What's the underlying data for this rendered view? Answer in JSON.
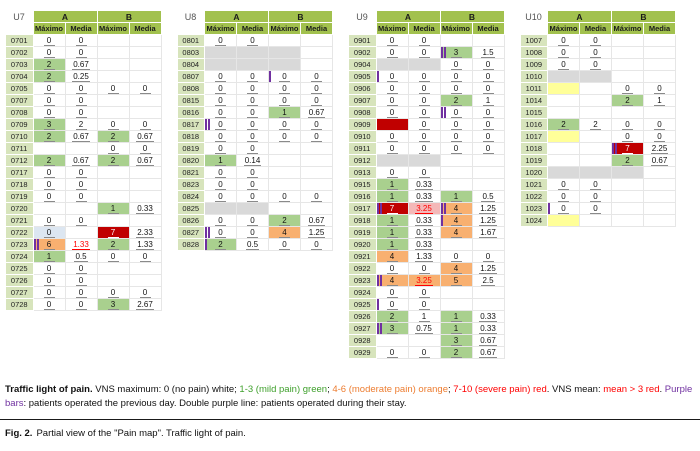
{
  "header": {
    "group_a": "A",
    "group_b": "B",
    "col_max": "Máximo",
    "col_mean": "Media"
  },
  "colors": {
    "header_green": "#a2c14e",
    "label_green": "#d7e4bc",
    "mild_green": "#a9d08e",
    "moderate_orange": "#f8b070",
    "severe_red": "#c00000",
    "yellow": "#ffff99",
    "gray": "#d9d9d9",
    "blue": "#dce6f1",
    "pink": "#f4b8b8",
    "purple": "#7030a0",
    "red_text": "#ff0000"
  },
  "units": [
    {
      "name": "U7",
      "rows": [
        [
          "0701",
          "0",
          "0",
          "",
          ""
        ],
        [
          "0702",
          "0",
          "0",
          "",
          ""
        ],
        [
          "0703",
          "2|g",
          "0.67",
          "",
          ""
        ],
        [
          "0704",
          "2|g",
          "0.25",
          "",
          ""
        ],
        [
          "0705",
          "0",
          "0",
          "0",
          "0"
        ],
        [
          "0707",
          "0",
          "0",
          "",
          ""
        ],
        [
          "0708",
          "0",
          "0",
          "",
          ""
        ],
        [
          "0709",
          "3|g",
          "2",
          "0",
          "0"
        ],
        [
          "0710",
          "2|g",
          "0.67",
          "2|g",
          "0.67"
        ],
        [
          "0711",
          "",
          "",
          "0",
          "0"
        ],
        [
          "0712",
          "2|g",
          "0.67",
          "2|g",
          "0.67"
        ],
        [
          "0717",
          "0",
          "0",
          "",
          ""
        ],
        [
          "0718",
          "0",
          "0",
          "",
          ""
        ],
        [
          "0719",
          "0",
          "0",
          "",
          ""
        ],
        [
          "0720",
          "",
          "",
          "1|g",
          "0.33"
        ],
        [
          "0721",
          "0",
          "0",
          "",
          ""
        ],
        [
          "0722",
          "0|b",
          "",
          "7|r|w",
          "2.33"
        ],
        [
          "0723",
          "6|o||d",
          "1.33||r",
          "2|g",
          "1.33"
        ],
        [
          "0724",
          "1|g",
          "0.5",
          "0",
          "0"
        ],
        [
          "0725",
          "0",
          "0",
          "",
          ""
        ],
        [
          "0726",
          "0",
          "0",
          "",
          ""
        ],
        [
          "0727",
          "0",
          "0",
          "0",
          "0"
        ],
        [
          "0728",
          "0",
          "0",
          "3|g",
          "2.67"
        ]
      ]
    },
    {
      "name": "U8",
      "rows": [
        [
          "0801",
          "0",
          "0",
          "",
          ""
        ],
        [
          "0803",
          "|x",
          "|x",
          "|x",
          ""
        ],
        [
          "0804",
          "|x",
          "|x",
          "|x",
          ""
        ],
        [
          "0807",
          "0",
          "0",
          "0|||s",
          "0"
        ],
        [
          "0808",
          "0",
          "0",
          "0",
          "0"
        ],
        [
          "0815",
          "0",
          "0",
          "0",
          "0"
        ],
        [
          "0816",
          "0",
          "0",
          "1|g",
          "0.67"
        ],
        [
          "0817",
          "0|||d",
          "0",
          "0",
          "0"
        ],
        [
          "0818",
          "0",
          "0",
          "0",
          "0"
        ],
        [
          "0819",
          "0",
          "0",
          "",
          ""
        ],
        [
          "0820",
          "1|g",
          "0.14",
          "",
          ""
        ],
        [
          "0821",
          "0",
          "0",
          "",
          ""
        ],
        [
          "0823",
          "0",
          "0",
          "",
          ""
        ],
        [
          "0824",
          "0",
          "0",
          "0",
          "0"
        ],
        [
          "0825",
          "|x",
          "|x",
          "",
          ""
        ],
        [
          "0826",
          "0",
          "0",
          "2|g",
          "0.67"
        ],
        [
          "0827",
          "0|||d",
          "0",
          "4|o",
          "1.25"
        ],
        [
          "0828",
          "2|g||s",
          "0.5",
          "0",
          "0"
        ]
      ]
    },
    {
      "name": "U9",
      "rows": [
        [
          "0901",
          "0",
          "0",
          "",
          ""
        ],
        [
          "0902",
          "0",
          "0",
          "3|g||d",
          "1.5"
        ],
        [
          "0904",
          "|x",
          "|x",
          "0",
          "0"
        ],
        [
          "0905",
          "0|||s",
          "0",
          "0",
          "0"
        ],
        [
          "0906",
          "0",
          "0",
          "0",
          "0"
        ],
        [
          "0907",
          "0",
          "0",
          "2|g",
          "1"
        ],
        [
          "0908",
          "0",
          "0",
          "0|||d",
          "0"
        ],
        [
          "0909",
          "|r",
          "0",
          "0",
          "0"
        ],
        [
          "0910",
          "0",
          "0",
          "0",
          "0"
        ],
        [
          "0911",
          "0",
          "0",
          "0",
          "0"
        ],
        [
          "0912",
          "|x",
          "|x",
          "",
          ""
        ],
        [
          "0913",
          "0",
          "0",
          "",
          ""
        ],
        [
          "0915",
          "1|g",
          "0.33",
          "",
          ""
        ],
        [
          "0916",
          "1|g",
          "0.33",
          "1|g",
          "0.5"
        ],
        [
          "0917",
          "7|r|w|d",
          "3.25|p|r",
          "4|o||d",
          "1.25"
        ],
        [
          "0918",
          "1|g",
          "0.33",
          "4|o||s",
          "1.25"
        ],
        [
          "0919",
          "1|g",
          "0.33",
          "4|o",
          "1.67"
        ],
        [
          "0920",
          "1|g",
          "0.33",
          "",
          ""
        ],
        [
          "0921",
          "4|o",
          "1.33",
          "0",
          "0"
        ],
        [
          "0922",
          "0",
          "0",
          "4|o",
          "1.25"
        ],
        [
          "0923",
          "4|o||d",
          "3.25|o|r",
          "5|o",
          "2.5"
        ],
        [
          "0924",
          "0",
          "0",
          "",
          ""
        ],
        [
          "0925",
          "0|||s",
          "0",
          "",
          ""
        ],
        [
          "0926",
          "2|g",
          "1",
          "1|g",
          "0.33"
        ],
        [
          "0927",
          "3|g||d",
          "0.75",
          "1|g",
          "0.33"
        ],
        [
          "0928",
          "",
          "",
          "3|g",
          "0.67"
        ],
        [
          "0929",
          "0",
          "0",
          "2|g",
          "0.67"
        ]
      ]
    },
    {
      "name": "U10",
      "rows": [
        [
          "1007",
          "0",
          "0",
          "",
          ""
        ],
        [
          "1008",
          "0",
          "0",
          "",
          ""
        ],
        [
          "1009",
          "0",
          "0",
          "",
          ""
        ],
        [
          "1010",
          "|x",
          "|x",
          "",
          ""
        ],
        [
          "1011",
          "|y",
          "",
          "0",
          "0"
        ],
        [
          "1014",
          "",
          "",
          "2|g",
          "1"
        ],
        [
          "1015",
          "",
          "",
          "",
          ""
        ],
        [
          "1016",
          "2|g",
          "2",
          "0",
          "0"
        ],
        [
          "1017",
          "|y",
          "",
          "0",
          "0"
        ],
        [
          "1018",
          "",
          "",
          "7|r|w|d",
          "2.25"
        ],
        [
          "1019",
          "",
          "",
          "2|g",
          "0.67"
        ],
        [
          "1020",
          "|x",
          "|x",
          "|x",
          ""
        ],
        [
          "1021",
          "0",
          "0",
          "",
          ""
        ],
        [
          "1022",
          "0",
          "0",
          "",
          ""
        ],
        [
          "1023",
          "0|||s",
          "0",
          "",
          ""
        ],
        [
          "1024",
          "|y",
          "",
          "",
          ""
        ]
      ]
    }
  ],
  "legend": {
    "segments": [
      {
        "t": "Traffic light of pain.",
        "b": true
      },
      {
        "t": " VNS maximum: 0 (no pain) white; "
      },
      {
        "t": "1-3 (mild pain) green",
        "c": "#3fa02c"
      },
      {
        "t": "; "
      },
      {
        "t": "4-6 (moderate pain) orange",
        "c": "#ed7d31"
      },
      {
        "t": "; "
      },
      {
        "t": "7-10 (severe pain) red",
        "c": "#ff0000"
      },
      {
        "t": ". VNS mean: "
      },
      {
        "t": "mean > 3 red",
        "c": "#ff0000"
      },
      {
        "t": ". "
      },
      {
        "t": "Purple bars",
        "c": "#7030a0"
      },
      {
        "t": ": patients operated the previous day. Double purple line: patients operated during their stay."
      }
    ]
  },
  "figure": {
    "label": "Fig. 2.",
    "caption": "Partial view of the \"Pain map\". Traffic light of pain."
  }
}
